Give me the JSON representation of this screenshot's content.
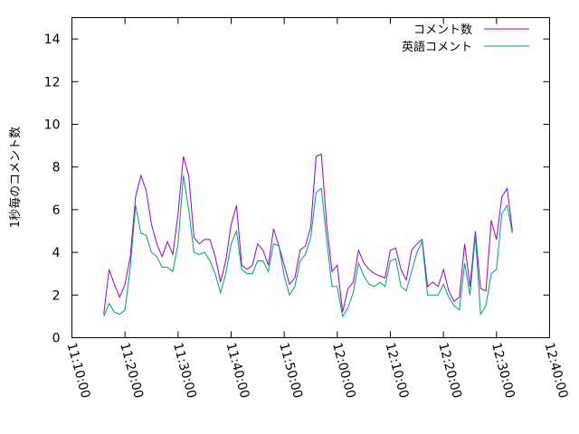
{
  "chart_data": {
    "type": "line",
    "title": "",
    "xlabel": "",
    "ylabel": "1秒毎のコメント数",
    "ylim": [
      0,
      15
    ],
    "yticks": [
      0,
      2,
      4,
      6,
      8,
      10,
      12,
      14
    ],
    "xlim": [
      "11:10:00",
      "12:40:00"
    ],
    "xticks": [
      "11:10:00",
      "11:20:00",
      "11:30:00",
      "11:40:00",
      "11:50:00",
      "12:00:00",
      "12:10:00",
      "12:20:00",
      "12:30:00",
      "12:40:00"
    ],
    "grid": false,
    "legend_position": "top-right",
    "x": [
      "11:16:00",
      "11:17:00",
      "11:18:00",
      "11:19:00",
      "11:20:00",
      "11:21:00",
      "11:22:00",
      "11:23:00",
      "11:24:00",
      "11:25:00",
      "11:26:00",
      "11:27:00",
      "11:28:00",
      "11:29:00",
      "11:30:00",
      "11:31:00",
      "11:32:00",
      "11:33:00",
      "11:34:00",
      "11:35:00",
      "11:36:00",
      "11:37:00",
      "11:38:00",
      "11:39:00",
      "11:40:00",
      "11:41:00",
      "11:42:00",
      "11:43:00",
      "11:44:00",
      "11:45:00",
      "11:46:00",
      "11:47:00",
      "11:48:00",
      "11:49:00",
      "11:50:00",
      "11:51:00",
      "11:52:00",
      "11:53:00",
      "11:54:00",
      "11:55:00",
      "11:56:00",
      "11:57:00",
      "11:58:00",
      "11:59:00",
      "12:00:00",
      "12:01:00",
      "12:02:00",
      "12:03:00",
      "12:04:00",
      "12:05:00",
      "12:06:00",
      "12:07:00",
      "12:08:00",
      "12:09:00",
      "12:10:00",
      "12:11:00",
      "12:12:00",
      "12:13:00",
      "12:14:00",
      "12:15:00",
      "12:16:00",
      "12:17:00",
      "12:18:00",
      "12:19:00",
      "12:20:00",
      "12:21:00",
      "12:22:00",
      "12:23:00",
      "12:24:00",
      "12:25:00",
      "12:26:00",
      "12:27:00",
      "12:28:00",
      "12:29:00",
      "12:30:00",
      "12:31:00",
      "12:32:00",
      "12:33:00"
    ],
    "series": [
      {
        "name": "コメント数",
        "color": "#9400d3",
        "values": [
          1.1,
          3.2,
          2.5,
          1.9,
          2.5,
          3.8,
          6.6,
          7.6,
          6.9,
          5.3,
          4.4,
          3.8,
          4.5,
          3.9,
          5.8,
          8.5,
          7.6,
          4.7,
          4.4,
          4.6,
          4.6,
          3.8,
          2.6,
          3.6,
          5.3,
          6.2,
          3.4,
          3.2,
          3.4,
          4.4,
          4.1,
          3.4,
          5.1,
          4.3,
          3.4,
          2.5,
          2.8,
          4.1,
          4.3,
          5.2,
          8.5,
          8.6,
          5.3,
          3.1,
          3.4,
          1.2,
          2.3,
          2.6,
          4.1,
          3.5,
          3.2,
          3.0,
          2.9,
          2.8,
          4.1,
          4.2,
          3.2,
          2.7,
          4.1,
          4.4,
          4.6,
          2.4,
          2.6,
          2.4,
          3.2,
          2.2,
          1.7,
          1.9,
          4.4,
          2.4,
          5.0,
          2.3,
          2.2,
          5.5,
          4.6,
          6.6,
          7.0,
          5.0
        ]
      },
      {
        "name": "英語コメント",
        "color": "#009e73",
        "values": [
          1.0,
          1.6,
          1.2,
          1.1,
          1.3,
          3.3,
          6.2,
          4.9,
          4.8,
          4.0,
          3.8,
          3.3,
          3.3,
          3.1,
          4.4,
          7.6,
          6.0,
          4.0,
          3.9,
          4.0,
          3.6,
          3.0,
          2.1,
          3.0,
          4.4,
          5.0,
          3.2,
          3.0,
          3.0,
          3.6,
          3.6,
          3.1,
          4.4,
          4.3,
          2.9,
          2.0,
          2.4,
          3.6,
          3.9,
          4.7,
          6.8,
          7.0,
          4.6,
          2.4,
          2.4,
          1.0,
          1.4,
          2.1,
          3.5,
          2.9,
          2.5,
          2.4,
          2.6,
          2.4,
          3.6,
          3.7,
          2.4,
          2.2,
          3.1,
          4.0,
          4.5,
          2.0,
          2.0,
          2.0,
          2.5,
          1.9,
          1.5,
          1.3,
          3.5,
          2.0,
          4.8,
          1.1,
          1.5,
          3.0,
          3.2,
          5.8,
          6.2,
          4.9
        ]
      }
    ]
  }
}
